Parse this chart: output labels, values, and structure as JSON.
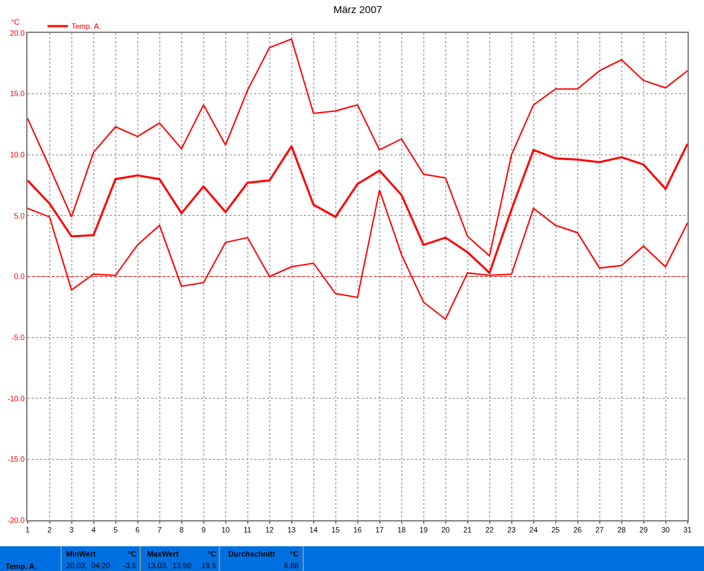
{
  "chart_data": {
    "type": "line",
    "title": "März 2007",
    "ylabel": "°C",
    "x": [
      1,
      2,
      3,
      4,
      5,
      6,
      7,
      8,
      9,
      10,
      11,
      12,
      13,
      14,
      15,
      16,
      17,
      18,
      19,
      20,
      21,
      22,
      23,
      24,
      25,
      26,
      27,
      28,
      29,
      30,
      31
    ],
    "series": [
      {
        "color": "#ff0000",
        "values": [
          13.0,
          9.0,
          4.9,
          10.2,
          12.3,
          11.5,
          12.6,
          10.5,
          14.1,
          10.8,
          15.3,
          18.8,
          19.5,
          13.4,
          13.6,
          14.1,
          10.4,
          11.3,
          8.4,
          8.1,
          3.3,
          1.7,
          10.0,
          14.1,
          15.4,
          15.4,
          16.9,
          17.8,
          16.1,
          15.5,
          16.9
        ]
      },
      {
        "name": "Temp. A.",
        "color": "#ff0000",
        "values": [
          7.9,
          6.0,
          3.3,
          3.4,
          8.0,
          8.3,
          8.0,
          5.2,
          7.4,
          5.3,
          7.7,
          7.9,
          10.7,
          5.9,
          4.9,
          7.6,
          8.7,
          6.7,
          2.6,
          3.2,
          2.0,
          0.3,
          5.5,
          10.4,
          9.7,
          9.6,
          9.4,
          9.8,
          9.2,
          7.2,
          10.9
        ]
      },
      {
        "color": "#ff0000",
        "values": [
          5.6,
          4.9,
          -1.1,
          0.2,
          0.1,
          2.6,
          4.2,
          -0.8,
          -0.5,
          2.8,
          3.2,
          0.0,
          0.8,
          1.1,
          -1.4,
          -1.7,
          7.1,
          1.8,
          -2.1,
          -3.5,
          0.3,
          0.1,
          0.2,
          5.6,
          4.2,
          3.6,
          0.7,
          0.9,
          2.5,
          0.8,
          4.4
        ]
      }
    ],
    "xlim": [
      1,
      31
    ],
    "xticks": [
      1,
      2,
      3,
      4,
      5,
      6,
      7,
      8,
      9,
      10,
      11,
      12,
      13,
      14,
      15,
      16,
      17,
      18,
      19,
      20,
      21,
      22,
      23,
      24,
      25,
      26,
      27,
      28,
      29,
      30,
      31
    ],
    "ylim": [
      -20,
      20
    ],
    "yticks": [
      {
        "value": -20,
        "label": "-20.0"
      },
      {
        "value": -15,
        "label": "-15.0"
      },
      {
        "value": -10,
        "label": "-10.0"
      },
      {
        "value": -5,
        "label": "-5.0"
      },
      {
        "value": 0,
        "label": "0.0"
      },
      {
        "value": 5,
        "label": "5.0"
      },
      {
        "value": 10,
        "label": "10.0"
      },
      {
        "value": 15,
        "label": "15.0"
      },
      {
        "value": 20,
        "label": "20.0"
      }
    ],
    "grid": true,
    "legend": "top left",
    "line_style": "solid",
    "marker": "none",
    "ref_lines": [
      {
        "axis": "y",
        "value": 0,
        "color": "#ff0000",
        "line_style": "dashed"
      }
    ],
    "annotations": [
      "MinWert",
      "°C",
      "MaxWert",
      "°C",
      "Durchschnitt",
      "°C",
      "Temp. A.",
      "20.03.  04:20",
      "-3.5",
      "13.03.  13:50",
      "19.5",
      "6.88"
    ]
  }
}
